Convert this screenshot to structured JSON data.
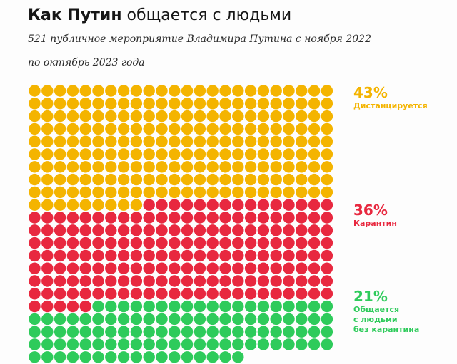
{
  "title": {
    "bold": "Как Путин",
    "rest": "общается с людьми"
  },
  "subtitle": {
    "line1": "521 публичное мероприятие Владимира Путина с ноября 2022",
    "line2": "по октябрь 2023 года"
  },
  "chart_data": {
    "type": "waffle",
    "total": 521,
    "columns": 24,
    "series": [
      {
        "key": "distance",
        "percent_label": "43%",
        "label_lines": [
          "Дистанцируется"
        ],
        "count": 225,
        "color": "#f4b400"
      },
      {
        "key": "quarantine",
        "percent_label": "36%",
        "label_lines": [
          "Карантин"
        ],
        "count": 188,
        "color": "#e8283f"
      },
      {
        "key": "open",
        "percent_label": "21%",
        "label_lines": [
          "Общается",
          "с людьми",
          "без карантина"
        ],
        "count": 108,
        "color": "#2ecb5b"
      }
    ]
  }
}
